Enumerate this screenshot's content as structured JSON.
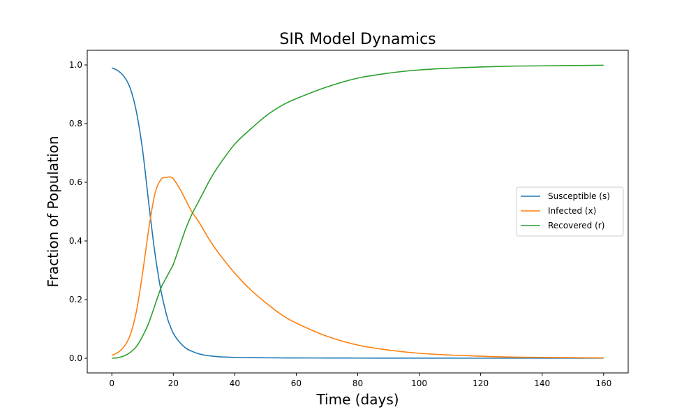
{
  "chart_data": {
    "type": "line",
    "title": "SIR Model Dynamics",
    "xlabel": "Time (days)",
    "ylabel": "Fraction of Population",
    "xlim": [
      -8,
      168
    ],
    "ylim": [
      -0.05,
      1.05
    ],
    "xticks": [
      0,
      20,
      40,
      60,
      80,
      100,
      120,
      140,
      160
    ],
    "yticks": [
      0.0,
      0.2,
      0.4,
      0.6,
      0.8,
      1.0
    ],
    "xtick_labels": [
      "0",
      "20",
      "40",
      "60",
      "80",
      "100",
      "120",
      "140",
      "160"
    ],
    "ytick_labels": [
      "0.0",
      "0.2",
      "0.4",
      "0.6",
      "0.8",
      "1.0"
    ],
    "grid": false,
    "legend_position": "center-right",
    "x": [
      0,
      2,
      4,
      6,
      8,
      10,
      12,
      14,
      16,
      18,
      19,
      20,
      22,
      24,
      26,
      28,
      30,
      32,
      35,
      40,
      45,
      50,
      55,
      60,
      70,
      80,
      90,
      100,
      110,
      120,
      130,
      140,
      150,
      160
    ],
    "series": [
      {
        "name": "Susceptible (s)",
        "color": "#1f77b4",
        "values": [
          0.99,
          0.98,
          0.96,
          0.92,
          0.84,
          0.71,
          0.53,
          0.36,
          0.23,
          0.14,
          0.11,
          0.085,
          0.055,
          0.035,
          0.024,
          0.016,
          0.011,
          0.008,
          0.005,
          0.003,
          0.002,
          0.0015,
          0.0012,
          0.001,
          0.0008,
          0.0006,
          0.0005,
          0.0004,
          0.0004,
          0.0003,
          0.0003,
          0.0003,
          0.0003,
          0.0003
        ]
      },
      {
        "name": "Infected (x)",
        "color": "#ff7f0e",
        "values": [
          0.01,
          0.02,
          0.04,
          0.08,
          0.16,
          0.29,
          0.44,
          0.56,
          0.61,
          0.617,
          0.618,
          0.612,
          0.58,
          0.54,
          0.5,
          0.47,
          0.435,
          0.4,
          0.355,
          0.29,
          0.235,
          0.19,
          0.15,
          0.12,
          0.075,
          0.045,
          0.028,
          0.017,
          0.011,
          0.007,
          0.004,
          0.003,
          0.002,
          0.001
        ]
      },
      {
        "name": "Recovered (r)",
        "color": "#2ca02c",
        "values": [
          0.0,
          0.002,
          0.008,
          0.02,
          0.04,
          0.075,
          0.12,
          0.18,
          0.24,
          0.28,
          0.3,
          0.32,
          0.38,
          0.44,
          0.49,
          0.53,
          0.57,
          0.61,
          0.66,
          0.73,
          0.78,
          0.825,
          0.86,
          0.885,
          0.925,
          0.955,
          0.972,
          0.983,
          0.989,
          0.993,
          0.996,
          0.997,
          0.998,
          0.999
        ]
      }
    ]
  }
}
